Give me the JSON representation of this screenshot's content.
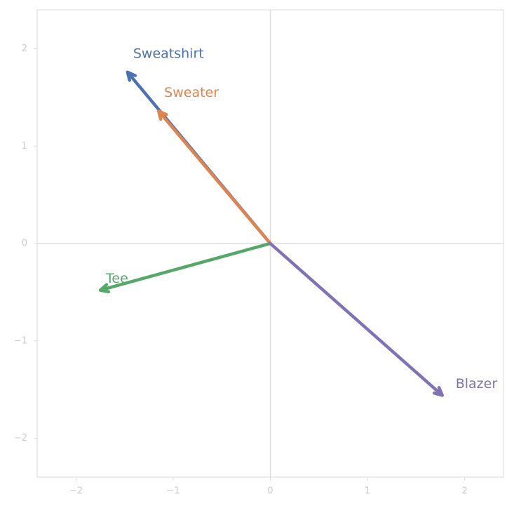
{
  "chart_data": {
    "type": "vector",
    "series": [
      {
        "name": "Sweatshirt",
        "color": "#4c72b0",
        "x": -1.47,
        "y": 1.76
      },
      {
        "name": "Sweater",
        "color": "#dd8452",
        "x": -1.15,
        "y": 1.36
      },
      {
        "name": "Tee",
        "color": "#55a868",
        "x": -1.75,
        "y": -0.48
      },
      {
        "name": "Blazer",
        "color": "#8172b3",
        "x": 1.77,
        "y": -1.56
      }
    ],
    "xlim": [
      -2.4,
      2.4
    ],
    "ylim": [
      -2.4,
      2.4
    ],
    "xticks": [
      {
        "value": -2,
        "label": "−2"
      },
      {
        "value": -1,
        "label": "−1"
      },
      0,
      1,
      2
    ],
    "yticks": [
      {
        "value": -2,
        "label": "−2"
      },
      {
        "value": -1,
        "label": "−1"
      },
      0,
      1,
      2
    ],
    "origin_lines": true
  }
}
